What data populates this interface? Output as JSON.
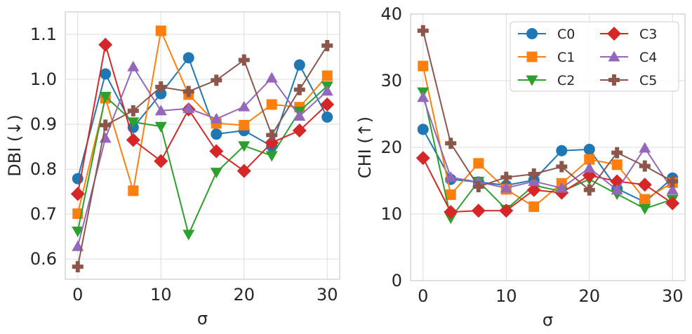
{
  "chart_data": [
    {
      "type": "line",
      "title": "",
      "xlabel": "σ",
      "ylabel": "DBI (↓)",
      "xlim": [
        -1.5,
        31.5
      ],
      "ylim": [
        0.555,
        1.15
      ],
      "xticks": [
        0,
        10,
        20,
        30
      ],
      "xtick_labels": [
        "0",
        "10",
        "20",
        "30"
      ],
      "yticks": [
        0.6,
        0.7,
        0.8,
        0.9,
        1.0,
        1.1
      ],
      "ytick_labels": [
        "0.6",
        "0.7",
        "0.8",
        "0.9",
        "1.0",
        "1.1"
      ],
      "grid": true,
      "x": [
        0,
        3.33,
        6.67,
        10,
        13.33,
        16.67,
        20,
        23.33,
        26.67,
        30
      ],
      "series": [
        {
          "name": "C0",
          "values": [
            0.779,
            1.012,
            0.893,
            0.968,
            1.048,
            0.878,
            0.886,
            0.851,
            1.032,
            0.916
          ]
        },
        {
          "name": "C1",
          "values": [
            0.701,
            0.958,
            0.752,
            1.108,
            0.966,
            0.902,
            0.898,
            0.944,
            0.938,
            1.008
          ]
        },
        {
          "name": "C2",
          "values": [
            0.662,
            0.962,
            0.905,
            0.895,
            0.655,
            0.793,
            0.852,
            0.83,
            0.929,
            0.985
          ]
        },
        {
          "name": "C3",
          "values": [
            0.745,
            1.077,
            0.865,
            0.818,
            0.933,
            0.84,
            0.796,
            0.859,
            0.886,
            0.944
          ]
        },
        {
          "name": "C4",
          "values": [
            0.628,
            0.869,
            1.028,
            0.93,
            0.935,
            0.912,
            0.939,
            1.003,
            0.918,
            0.974
          ]
        },
        {
          "name": "C5",
          "values": [
            0.583,
            0.898,
            0.93,
            0.983,
            0.973,
            0.998,
            1.043,
            0.876,
            0.977,
            1.075
          ]
        }
      ]
    },
    {
      "type": "line",
      "title": "",
      "xlabel": "σ",
      "ylabel": "CHI (↑)",
      "xlim": [
        -1.5,
        31.5
      ],
      "ylim": [
        0,
        40
      ],
      "xticks": [
        0,
        10,
        20,
        30
      ],
      "xtick_labels": [
        "0",
        "10",
        "20",
        "30"
      ],
      "yticks": [
        0,
        10,
        20,
        30,
        40
      ],
      "ytick_labels": [
        "0",
        "10",
        "20",
        "30",
        "40"
      ],
      "grid": true,
      "legend": "top-right",
      "x": [
        0,
        3.33,
        6.67,
        10,
        13.33,
        16.67,
        20,
        23.33,
        26.67,
        30
      ],
      "series": [
        {
          "name": "C0",
          "values": [
            22.7,
            15.2,
            14.8,
            14.3,
            15.1,
            19.5,
            19.7,
            13.8,
            11.8,
            15.4
          ]
        },
        {
          "name": "C1",
          "values": [
            32.2,
            12.9,
            17.6,
            13.7,
            11.1,
            14.6,
            18.2,
            17.4,
            12.2,
            14.7
          ]
        },
        {
          "name": "C2",
          "values": [
            28.3,
            9.4,
            14.9,
            10.7,
            14.3,
            13.4,
            15.2,
            13.0,
            10.8,
            12.2
          ]
        },
        {
          "name": "C3",
          "values": [
            18.4,
            10.3,
            10.5,
            10.5,
            13.6,
            13.2,
            15.8,
            14.9,
            14.4,
            11.6
          ]
        },
        {
          "name": "C4",
          "values": [
            27.5,
            15.5,
            14.8,
            13.9,
            14.9,
            13.9,
            16.9,
            13.6,
            19.9,
            13.6
          ]
        },
        {
          "name": "C5",
          "values": [
            37.5,
            20.6,
            14.1,
            15.5,
            16.0,
            17.1,
            13.6,
            19.2,
            17.2,
            14.9
          ]
        }
      ]
    }
  ],
  "styles": {
    "C0": {
      "color": "#1f77b4",
      "marker": "circle"
    },
    "C1": {
      "color": "#ff7f0e",
      "marker": "square"
    },
    "C2": {
      "color": "#2ca02c",
      "marker": "triangle-down"
    },
    "C3": {
      "color": "#d62728",
      "marker": "diamond"
    },
    "C4": {
      "color": "#9467bd",
      "marker": "triangle-up"
    },
    "C5": {
      "color": "#8c564b",
      "marker": "plus"
    }
  }
}
